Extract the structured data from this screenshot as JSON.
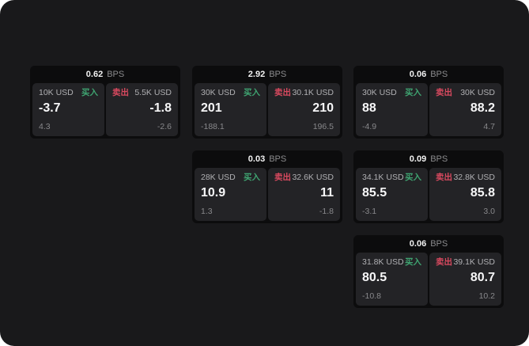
{
  "colors": {
    "buy_green": "#3fa471",
    "sell_red": "#d8495f",
    "background": "#19191b",
    "card_background": "#0c0c0d",
    "panel_background": "#232326"
  },
  "cards": [
    {
      "bps_value": "0.62",
      "bps_unit": "BPS",
      "buy": {
        "amount": "10K USD",
        "side_label": "买入",
        "value": "-3.7",
        "sub_value": "4.3"
      },
      "sell": {
        "side_label": "卖出",
        "amount": "5.5K USD",
        "value": "-1.8",
        "sub_value": "-2.6"
      }
    },
    {
      "bps_value": "2.92",
      "bps_unit": "BPS",
      "buy": {
        "amount": "30K USD",
        "side_label": "买入",
        "value": "201",
        "sub_value": "-188.1"
      },
      "sell": {
        "side_label": "卖出",
        "amount": "30.1K USD",
        "value": "210",
        "sub_value": "196.5"
      }
    },
    {
      "bps_value": "0.06",
      "bps_unit": "BPS",
      "buy": {
        "amount": "30K USD",
        "side_label": "买入",
        "value": "88",
        "sub_value": "-4.9"
      },
      "sell": {
        "side_label": "卖出",
        "amount": "30K USD",
        "value": "88.2",
        "sub_value": "4.7"
      }
    },
    {
      "bps_value": "0.03",
      "bps_unit": "BPS",
      "buy": {
        "amount": "28K USD",
        "side_label": "买入",
        "value": "10.9",
        "sub_value": "1.3"
      },
      "sell": {
        "side_label": "卖出",
        "amount": "32.6K USD",
        "value": "11",
        "sub_value": "-1.8"
      }
    },
    {
      "bps_value": "0.09",
      "bps_unit": "BPS",
      "buy": {
        "amount": "34.1K USD",
        "side_label": "买入",
        "value": "85.5",
        "sub_value": "-3.1"
      },
      "sell": {
        "side_label": "卖出",
        "amount": "32.8K USD",
        "value": "85.8",
        "sub_value": "3.0"
      }
    },
    {
      "bps_value": "0.06",
      "bps_unit": "BPS",
      "buy": {
        "amount": "31.8K USD",
        "side_label": "买入",
        "value": "80.5",
        "sub_value": "-10.8"
      },
      "sell": {
        "side_label": "卖出",
        "amount": "39.1K USD",
        "value": "80.7",
        "sub_value": "10.2"
      }
    }
  ]
}
